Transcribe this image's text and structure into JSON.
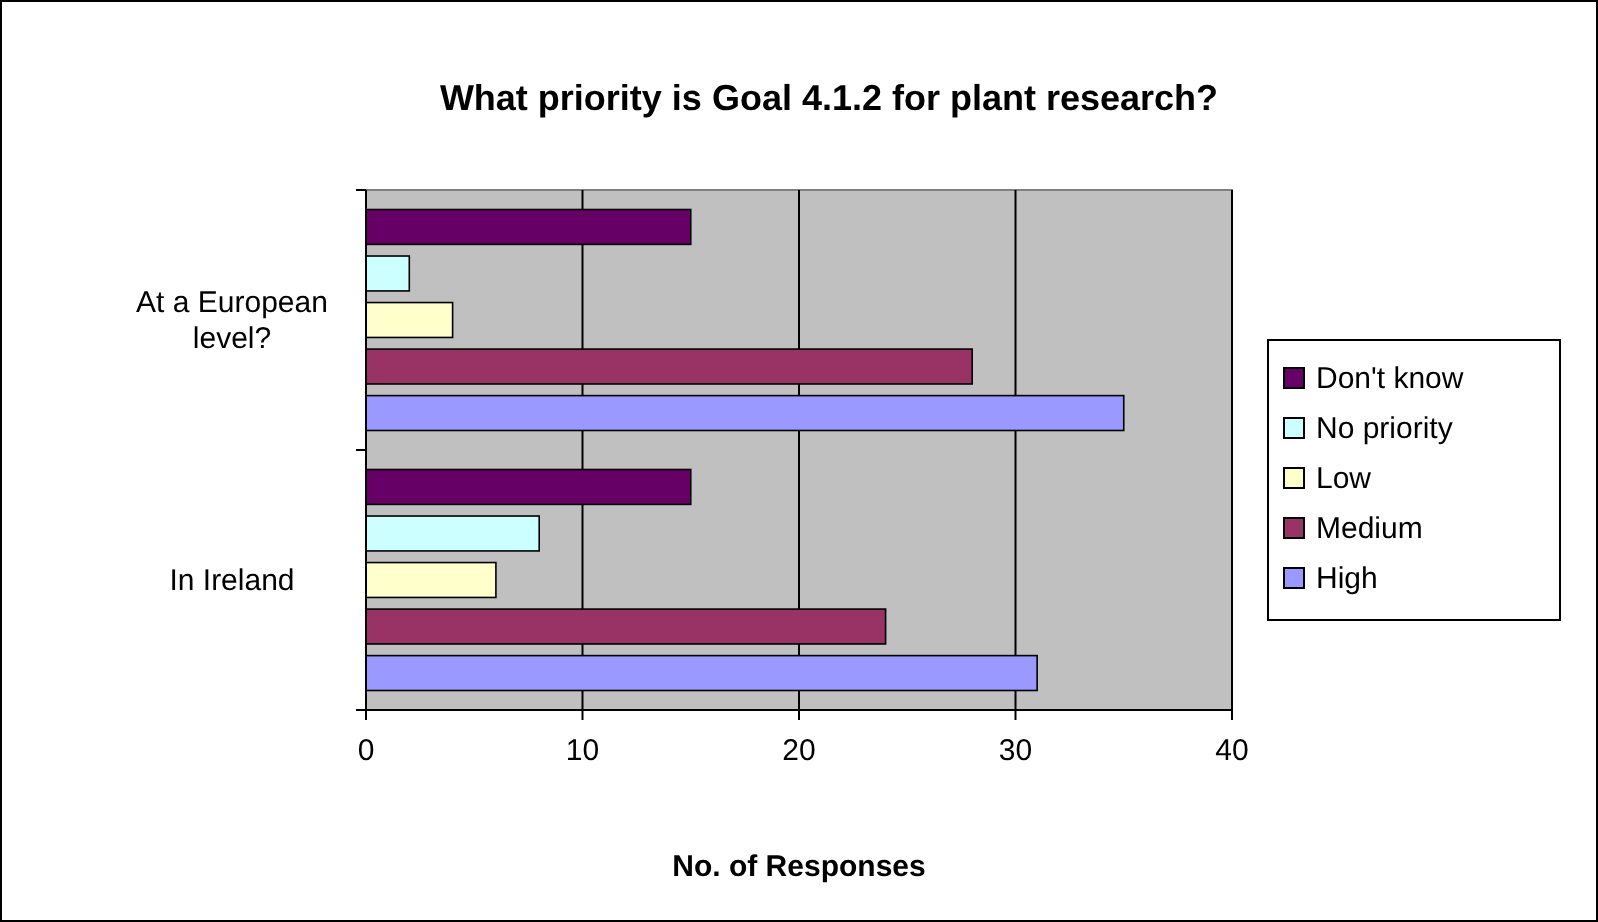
{
  "chart_data": {
    "type": "bar",
    "orientation": "horizontal",
    "title": "What priority is Goal 4.1.2 for plant research?",
    "xlabel": "No. of Responses",
    "categories": [
      "At a European level?",
      "In Ireland"
    ],
    "series": [
      {
        "name": "Don't know",
        "color": "#660066",
        "values": [
          15,
          15
        ]
      },
      {
        "name": "No priority",
        "color": "#ccffff",
        "values": [
          2,
          8
        ]
      },
      {
        "name": "Low",
        "color": "#ffffcc",
        "values": [
          4,
          6
        ]
      },
      {
        "name": "Medium",
        "color": "#993366",
        "values": [
          28,
          24
        ]
      },
      {
        "name": "High",
        "color": "#9999ff",
        "values": [
          35,
          31
        ]
      }
    ],
    "xlim": [
      0,
      40
    ],
    "xticks": [
      0,
      10,
      20,
      30,
      40
    ],
    "grid": "x",
    "legend": "right"
  }
}
